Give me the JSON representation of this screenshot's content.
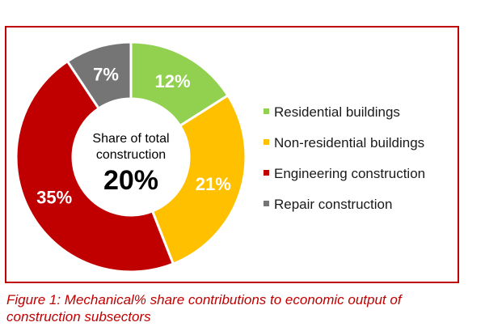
{
  "chart_data": {
    "type": "pie",
    "categories": [
      "Residential buildings",
      "Non-residential buildings",
      "Engineering construction",
      "Repair construction"
    ],
    "values": [
      12,
      21,
      35,
      7
    ],
    "value_labels": [
      "12%",
      "21%",
      "35%",
      "7%"
    ],
    "colors": [
      "#92d050",
      "#ffc000",
      "#c00000",
      "#757575"
    ],
    "center_label_line1": "Share of total",
    "center_label_line2": "construction",
    "center_value": "20%",
    "legend_position": "right"
  },
  "caption": {
    "line1": "Figure 1: Mechanical% share contributions to economic output of",
    "line2": "construction subsectors"
  }
}
